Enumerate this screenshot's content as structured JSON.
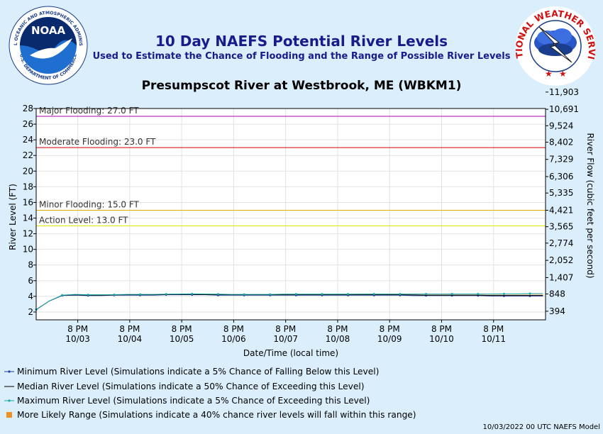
{
  "header": {
    "title": "10 Day NAEFS Potential River Levels",
    "subtitle": "Used to Estimate the Chance of Flooding and the Range of Possible River Levels",
    "station": "Presumpscot River at Westbrook, ME (WBKM1)",
    "noaa_logo_text": "NOAA",
    "noaa_ring_text": "NATIONAL OCEANIC AND ATMOSPHERIC ADMINISTRATION",
    "noaa_ring_bottom": "U.S. DEPARTMENT OF COMMERCE",
    "nws_ring_text": "NATIONAL WEATHER SERVICE"
  },
  "chart_data": {
    "type": "line",
    "xlabel": "Date/Time (local time)",
    "ylabel": "River Level (FT)",
    "y2label": "River Flow (cubic feet per second)",
    "ylim": [
      1,
      28
    ],
    "yticks": [
      2,
      4,
      6,
      8,
      10,
      12,
      14,
      16,
      18,
      20,
      22,
      24,
      26,
      28
    ],
    "y2ticks": [
      {
        "stage": 2.1,
        "label": "394"
      },
      {
        "stage": 4.3,
        "label": "848"
      },
      {
        "stage": 6.4,
        "label": "1,407"
      },
      {
        "stage": 8.6,
        "label": "2,052"
      },
      {
        "stage": 10.8,
        "label": "2,774"
      },
      {
        "stage": 12.9,
        "label": "3,565"
      },
      {
        "stage": 15.0,
        "label": "4,421"
      },
      {
        "stage": 17.2,
        "label": "5,335"
      },
      {
        "stage": 19.3,
        "label": "6,306"
      },
      {
        "stage": 21.5,
        "label": "7,329"
      },
      {
        "stage": 23.7,
        "label": "8,402"
      },
      {
        "stage": 25.8,
        "label": "9,524"
      },
      {
        "stage": 27.9,
        "label": "10,691"
      },
      {
        "stage": 30.1,
        "label": "11,903"
      }
    ],
    "xlim": [
      0,
      9.8
    ],
    "xticks": [
      {
        "x": 0.8,
        "time": "8 PM",
        "date": "10/03"
      },
      {
        "x": 1.8,
        "time": "8 PM",
        "date": "10/04"
      },
      {
        "x": 2.8,
        "time": "8 PM",
        "date": "10/05"
      },
      {
        "x": 3.8,
        "time": "8 PM",
        "date": "10/06"
      },
      {
        "x": 4.8,
        "time": "8 PM",
        "date": "10/07"
      },
      {
        "x": 5.8,
        "time": "8 PM",
        "date": "10/08"
      },
      {
        "x": 6.8,
        "time": "8 PM",
        "date": "10/09"
      },
      {
        "x": 7.8,
        "time": "8 PM",
        "date": "10/10"
      },
      {
        "x": 8.8,
        "time": "8 PM",
        "date": "10/11"
      }
    ],
    "thresholds": [
      {
        "label": "Major Flooding: 27.0 FT",
        "value": 27.0,
        "color": "#b000b0"
      },
      {
        "label": "Moderate Flooding: 23.0 FT",
        "value": 23.0,
        "color": "#d00000"
      },
      {
        "label": "Minor Flooding: 15.0 FT",
        "value": 15.0,
        "color": "#e0b000"
      },
      {
        "label": "Action Level: 13.0 FT",
        "value": 13.0,
        "color": "#e6e600"
      }
    ],
    "x": [
      0,
      0.25,
      0.5,
      0.75,
      1.0,
      1.25,
      1.5,
      1.75,
      2.0,
      2.25,
      2.5,
      2.75,
      3.0,
      3.25,
      3.5,
      3.75,
      4.0,
      4.25,
      4.5,
      4.75,
      5.0,
      5.25,
      5.5,
      5.75,
      6.0,
      6.25,
      6.5,
      6.75,
      7.0,
      7.25,
      7.5,
      7.75,
      8.0,
      8.25,
      8.5,
      8.75,
      9.0,
      9.25,
      9.5,
      9.75
    ],
    "series": [
      {
        "name": "Minimum River Level (Simulations indicate a 5% Chance of Falling Below this Level)",
        "color": "#1f3fa0",
        "values": [
          2.3,
          3.4,
          4.1,
          4.15,
          4.1,
          4.1,
          4.15,
          4.15,
          4.15,
          4.15,
          4.2,
          4.2,
          4.2,
          4.2,
          4.15,
          4.15,
          4.15,
          4.15,
          4.15,
          4.15,
          4.15,
          4.15,
          4.15,
          4.15,
          4.15,
          4.15,
          4.15,
          4.15,
          4.15,
          4.1,
          4.1,
          4.1,
          4.1,
          4.1,
          4.1,
          4.05,
          4.05,
          4.05,
          4.05,
          4.05
        ]
      },
      {
        "name": "Median River Level (Simulations indicate a 50% Chance of Exceeding this Level)",
        "color": "#000000",
        "values": [
          2.3,
          3.4,
          4.12,
          4.2,
          4.15,
          4.15,
          4.18,
          4.2,
          4.2,
          4.2,
          4.22,
          4.25,
          4.25,
          4.22,
          4.2,
          4.2,
          4.2,
          4.2,
          4.2,
          4.2,
          4.2,
          4.2,
          4.2,
          4.2,
          4.2,
          4.2,
          4.2,
          4.2,
          4.2,
          4.18,
          4.15,
          4.15,
          4.15,
          4.15,
          4.15,
          4.12,
          4.12,
          4.12,
          4.12,
          4.12
        ]
      },
      {
        "name": "Maximum River Level (Simulations indicate a 5% Chance of Exceeding this Level)",
        "color": "#1aa8a8",
        "values": [
          2.3,
          3.4,
          4.15,
          4.25,
          4.2,
          4.2,
          4.22,
          4.25,
          4.25,
          4.25,
          4.28,
          4.3,
          4.32,
          4.3,
          4.28,
          4.25,
          4.25,
          4.25,
          4.25,
          4.28,
          4.28,
          4.28,
          4.28,
          4.28,
          4.28,
          4.3,
          4.3,
          4.3,
          4.3,
          4.3,
          4.3,
          4.3,
          4.3,
          4.3,
          4.3,
          4.3,
          4.32,
          4.32,
          4.35,
          4.35
        ]
      }
    ],
    "range_label": "More Likely Range (Simulations indicate a 40% chance river levels will fall within this range)",
    "range_color": "#f09020",
    "model_note": "10/03/2022 00 UTC NAEFS Model"
  }
}
